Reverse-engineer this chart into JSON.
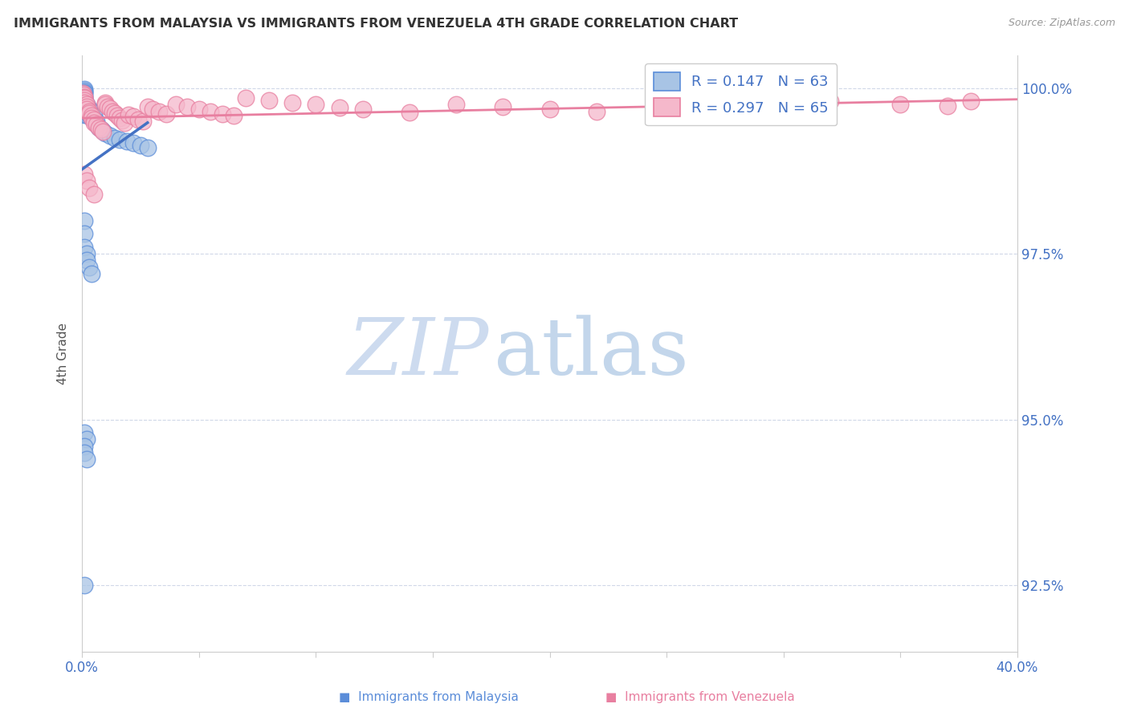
{
  "title": "IMMIGRANTS FROM MALAYSIA VS IMMIGRANTS FROM VENEZUELA 4TH GRADE CORRELATION CHART",
  "source": "Source: ZipAtlas.com",
  "ylabel": "4th Grade",
  "xlim": [
    0.0,
    0.4
  ],
  "ylim": [
    0.915,
    1.005
  ],
  "ytick_vals": [
    0.925,
    0.95,
    0.975,
    1.0
  ],
  "ytick_labels": [
    "92.5%",
    "95.0%",
    "97.5%",
    "100.0%"
  ],
  "xtick_vals": [
    0.0,
    0.05,
    0.1,
    0.15,
    0.2,
    0.25,
    0.3,
    0.35,
    0.4
  ],
  "legend_r_malaysia": "R = 0.147",
  "legend_n_malaysia": "N = 63",
  "legend_r_venezuela": "R = 0.297",
  "legend_n_venezuela": "N = 65",
  "color_malaysia_fill": "#a8c4e5",
  "color_malaysia_edge": "#5b8dd9",
  "color_malaysia_line": "#4472c4",
  "color_venezuela_fill": "#f5b8cb",
  "color_venezuela_edge": "#e87fa0",
  "color_venezuela_line": "#e87fa0",
  "color_legend_text": "#4472c4",
  "color_grid": "#d0d8e8",
  "color_tick": "#4472c4",
  "watermark_zip": "ZIP",
  "watermark_atlas": "atlas",
  "malaysia_x": [
    0.0002,
    0.0003,
    0.0004,
    0.0005,
    0.0006,
    0.0007,
    0.0008,
    0.001,
    0.001,
    0.001,
    0.001,
    0.001,
    0.001,
    0.001,
    0.001,
    0.001,
    0.001,
    0.001,
    0.001,
    0.001,
    0.001,
    0.001,
    0.002,
    0.002,
    0.002,
    0.002,
    0.002,
    0.002,
    0.003,
    0.003,
    0.003,
    0.003,
    0.004,
    0.004,
    0.004,
    0.005,
    0.005,
    0.006,
    0.006,
    0.007,
    0.008,
    0.009,
    0.01,
    0.012,
    0.014,
    0.016,
    0.019,
    0.022,
    0.025,
    0.028,
    0.001,
    0.001,
    0.001,
    0.002,
    0.002,
    0.003,
    0.004,
    0.001,
    0.002,
    0.001,
    0.001,
    0.002,
    0.001
  ],
  "malaysia_y": [
    0.9995,
    0.999,
    0.9988,
    0.9985,
    0.9982,
    0.998,
    0.9978,
    0.9998,
    0.9996,
    0.9994,
    0.9992,
    0.9989,
    0.9987,
    0.9984,
    0.9981,
    0.9978,
    0.9975,
    0.9972,
    0.9969,
    0.9966,
    0.9963,
    0.996,
    0.9975,
    0.9972,
    0.9969,
    0.9966,
    0.9963,
    0.996,
    0.997,
    0.9967,
    0.9963,
    0.996,
    0.9965,
    0.996,
    0.9955,
    0.9958,
    0.9952,
    0.995,
    0.9945,
    0.994,
    0.9938,
    0.9935,
    0.9932,
    0.9928,
    0.9925,
    0.9922,
    0.992,
    0.9917,
    0.9914,
    0.991,
    0.98,
    0.978,
    0.976,
    0.975,
    0.974,
    0.973,
    0.972,
    0.948,
    0.947,
    0.946,
    0.945,
    0.944,
    0.925
  ],
  "venezuela_x": [
    0.0003,
    0.0005,
    0.0008,
    0.001,
    0.001,
    0.001,
    0.002,
    0.002,
    0.002,
    0.003,
    0.003,
    0.004,
    0.004,
    0.005,
    0.005,
    0.006,
    0.007,
    0.008,
    0.009,
    0.01,
    0.01,
    0.011,
    0.012,
    0.013,
    0.014,
    0.015,
    0.016,
    0.017,
    0.018,
    0.02,
    0.022,
    0.024,
    0.026,
    0.028,
    0.03,
    0.033,
    0.036,
    0.04,
    0.045,
    0.05,
    0.055,
    0.06,
    0.065,
    0.07,
    0.08,
    0.09,
    0.1,
    0.11,
    0.12,
    0.14,
    0.16,
    0.18,
    0.2,
    0.22,
    0.25,
    0.28,
    0.3,
    0.32,
    0.35,
    0.37,
    0.001,
    0.002,
    0.003,
    0.005,
    0.38
  ],
  "venezuela_y": [
    0.9993,
    0.999,
    0.9987,
    0.9985,
    0.9982,
    0.9978,
    0.9975,
    0.9972,
    0.9968,
    0.9965,
    0.9962,
    0.9959,
    0.9955,
    0.9952,
    0.9948,
    0.9945,
    0.9941,
    0.9938,
    0.9934,
    0.9978,
    0.9975,
    0.9972,
    0.9969,
    0.9965,
    0.9962,
    0.9958,
    0.9955,
    0.9951,
    0.9948,
    0.996,
    0.9957,
    0.9953,
    0.995,
    0.9972,
    0.9968,
    0.9965,
    0.9961,
    0.9975,
    0.9972,
    0.9968,
    0.9965,
    0.9961,
    0.9958,
    0.9985,
    0.9982,
    0.9978,
    0.9975,
    0.9971,
    0.9968,
    0.9964,
    0.9975,
    0.9972,
    0.9968,
    0.9965,
    0.997,
    0.9966,
    0.9963,
    0.998,
    0.9976,
    0.9973,
    0.987,
    0.986,
    0.985,
    0.984,
    0.998
  ]
}
